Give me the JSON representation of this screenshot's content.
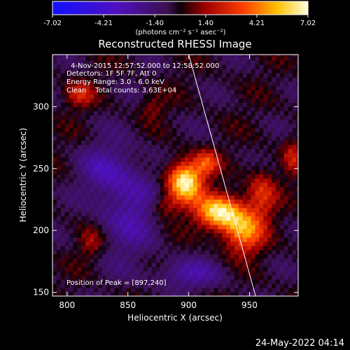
{
  "colorbar": {
    "ticks": [
      -7.02,
      -4.21,
      -1.4,
      1.4,
      4.21,
      7.02
    ],
    "tick_labels": [
      "-7.02",
      "-4.21",
      "-1.40",
      "1.40",
      "4.21",
      "7.02"
    ],
    "unit_label": "(photons cm⁻² s⁻¹ asec⁻²)",
    "range": [
      -7.02,
      7.02
    ]
  },
  "chart_data": {
    "type": "heatmap",
    "title": "Reconstructed RHESSI Image",
    "xlabel": "Heliocentric X (arcsec)",
    "ylabel": "Heliocentric Y (arcsec)",
    "xlim": [
      788,
      990
    ],
    "ylim": [
      147,
      342
    ],
    "xticks": [
      800,
      850,
      900,
      950
    ],
    "yticks": [
      150,
      200,
      250,
      300
    ],
    "annotations": [
      "4-Nov-2015 12:57:52.000 to 12:58:52.000",
      "Detectors: 1F 5F 7F, Att 0",
      "Energy Range: 3.0 - 6.0 keV",
      "Clean    Total counts: 3.63E+04"
    ],
    "peak_label": "Position of Peak = [897,240]",
    "peak": [
      897,
      240
    ],
    "limb_line": [
      [
        900,
        342
      ],
      [
        955,
        147
      ]
    ]
  },
  "footer": {
    "date": "24-May-2022 04:14"
  }
}
